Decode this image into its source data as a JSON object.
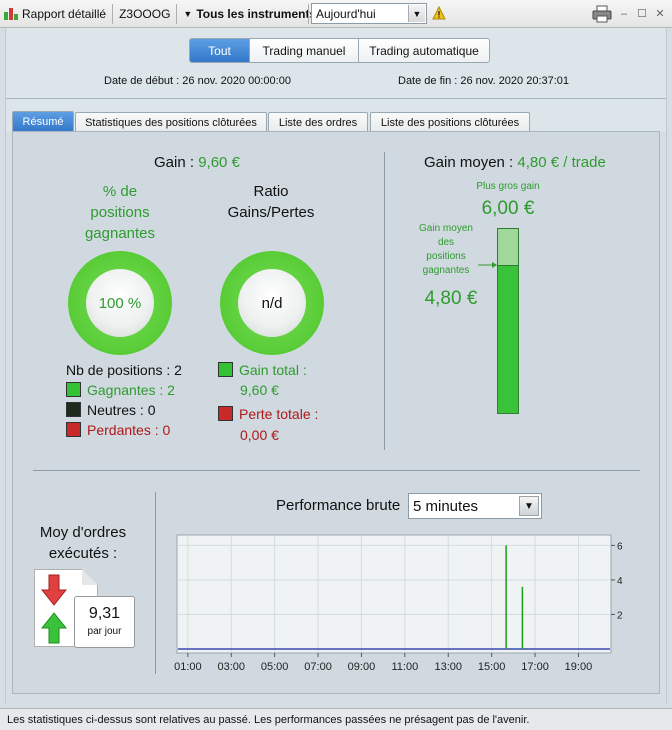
{
  "toolbar": {
    "report_label": "Rapport détaillé",
    "account": "Z3OOOG",
    "instruments_label": "Tous les instruments",
    "period_value": "Aujourd'hui"
  },
  "header": {
    "filters": [
      "Tout",
      "Trading manuel",
      "Trading automatique"
    ],
    "active_filter": "Tout",
    "start_date_label": "Date de début : 26 nov. 2020 00:00:00",
    "end_date_label": "Date de fin : 26 nov. 2020 20:37:01"
  },
  "tabs": [
    {
      "label": "Résumé",
      "active": true
    },
    {
      "label": "Statistiques des positions clôturées",
      "active": false
    },
    {
      "label": "Liste des ordres",
      "active": false
    },
    {
      "label": "Liste des positions clôturées",
      "active": false
    }
  ],
  "summary": {
    "gain_label": "Gain :",
    "gain_value": "9,60 €",
    "pct_winning_title_1": "% de",
    "pct_winning_title_2": "positions",
    "pct_winning_title_3": "gagnantes",
    "pct_winning_value": "100 %",
    "pct_winning_fraction": 1.0,
    "ratio_title_1": "Ratio",
    "ratio_title_2": "Gains/Pertes",
    "ratio_value": "n/d",
    "positions_count_label": "Nb de positions : 2",
    "winning_label": "Gagnantes : 2",
    "neutral_label": "Neutres : 0",
    "losing_label": "Perdantes : 0",
    "total_gain_label": "Gain total :",
    "total_gain_value": "9,60 €",
    "total_loss_label": "Perte totale :",
    "total_loss_value": "0,00 €",
    "colors": {
      "win": "#2f9b2f",
      "loss": "#b01818",
      "neutral": "#1e2a1e"
    }
  },
  "avg_gain": {
    "label": "Gain moyen :",
    "value": "4,80 € / trade",
    "biggest_gain_label": "Plus gros gain",
    "biggest_gain_value": "6,00 €",
    "avg_winning_label_1": "Gain moyen",
    "avg_winning_label_2": "des",
    "avg_winning_label_3": "positions",
    "avg_winning_label_4": "gagnantes",
    "avg_winning_value": "4,80 €",
    "avg_fraction_of_max": 0.8
  },
  "orders": {
    "title_1": "Moy d'ordres",
    "title_2": "exécutés :",
    "value": "9,31",
    "unit": "par jour"
  },
  "performance": {
    "label": "Performance brute",
    "interval": "5 minutes"
  },
  "chart_data": {
    "type": "bar",
    "x_ticks": [
      "01:00",
      "03:00",
      "05:00",
      "07:00",
      "09:00",
      "11:00",
      "13:00",
      "15:00",
      "17:00",
      "19:00"
    ],
    "y_ticks": [
      2,
      4,
      6
    ],
    "ylim": [
      0,
      6.6
    ],
    "xlim_hours": [
      0.5,
      20.5
    ],
    "x": [
      "15:40",
      "16:25"
    ],
    "values": [
      6.0,
      3.6
    ],
    "baseline": 0,
    "bar_color": "#1c9c1c",
    "baseline_color": "#3a48b0"
  },
  "status_text": "Les statistiques ci-dessus sont relatives au passé. Les performances passées ne présagent pas de l'avenir."
}
